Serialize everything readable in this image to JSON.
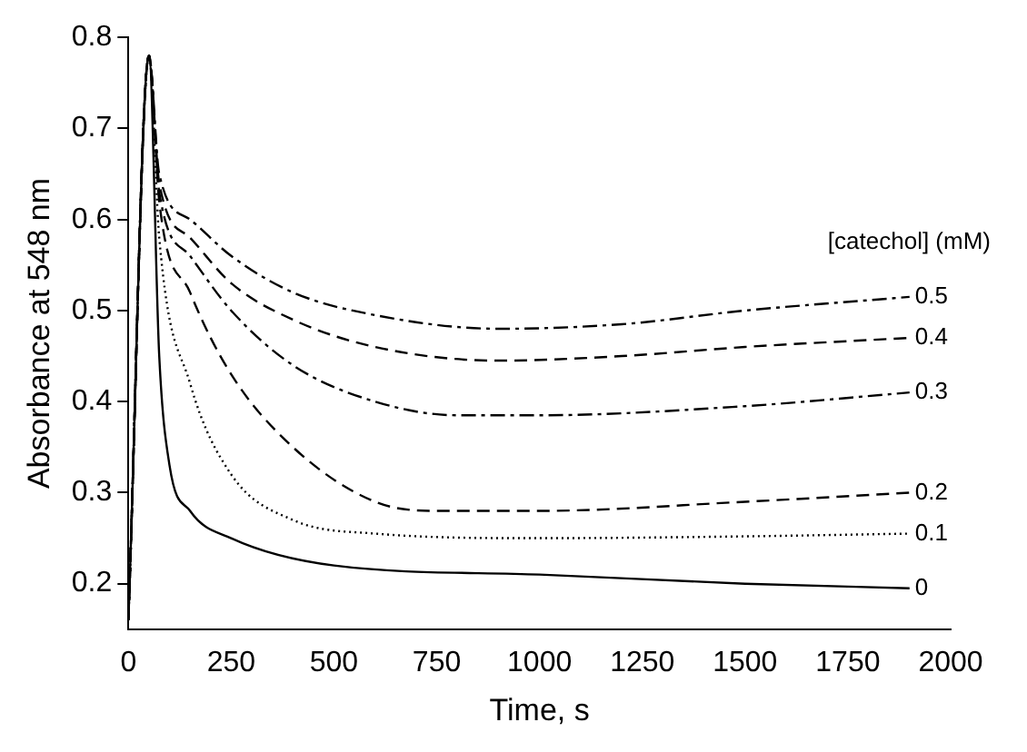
{
  "chart_data": {
    "type": "line",
    "xlabel": "Time, s",
    "ylabel": "Absorbance at 548 nm",
    "legend_title": "[catechol] (mM)",
    "xlim": [
      0,
      2000
    ],
    "ylim": [
      0.15,
      0.8
    ],
    "xticks": [
      0,
      250,
      500,
      750,
      1000,
      1250,
      1500,
      1750,
      2000
    ],
    "yticks": [
      0.2,
      0.3,
      0.4,
      0.5,
      0.6,
      0.7,
      0.8
    ],
    "grid": false,
    "legend": false,
    "marker": "none",
    "series": [
      {
        "name": "0.5",
        "color": "#000000",
        "line_style": "dashed",
        "x": [
          0,
          50,
          75,
          150,
          250,
          400,
          600,
          900,
          1200,
          1500,
          1900
        ],
        "values": [
          0.16,
          0.78,
          0.65,
          0.6,
          0.56,
          0.52,
          0.495,
          0.48,
          0.485,
          0.5,
          0.515
        ]
      },
      {
        "name": "0.4",
        "color": "#000000",
        "line_style": "dashed",
        "x": [
          0,
          50,
          75,
          150,
          250,
          400,
          600,
          900,
          1200,
          1500,
          1900
        ],
        "values": [
          0.16,
          0.78,
          0.64,
          0.58,
          0.53,
          0.49,
          0.46,
          0.445,
          0.45,
          0.46,
          0.47
        ]
      },
      {
        "name": "0.3",
        "color": "#000000",
        "line_style": "dashed",
        "x": [
          0,
          50,
          75,
          150,
          250,
          400,
          600,
          800,
          1000,
          1500,
          1900
        ],
        "values": [
          0.16,
          0.78,
          0.63,
          0.56,
          0.5,
          0.44,
          0.4,
          0.385,
          0.385,
          0.395,
          0.41
        ]
      },
      {
        "name": "0.2",
        "color": "#000000",
        "line_style": "dashed",
        "x": [
          0,
          50,
          75,
          150,
          250,
          400,
          600,
          750,
          1000,
          1500,
          1900
        ],
        "values": [
          0.16,
          0.78,
          0.62,
          0.52,
          0.43,
          0.35,
          0.29,
          0.28,
          0.28,
          0.29,
          0.3
        ]
      },
      {
        "name": "0.1",
        "color": "#000000",
        "line_style": "dotted",
        "x": [
          0,
          50,
          75,
          150,
          250,
          400,
          600,
          1000,
          1500,
          1900
        ],
        "values": [
          0.16,
          0.78,
          0.58,
          0.42,
          0.32,
          0.27,
          0.255,
          0.25,
          0.252,
          0.255
        ]
      },
      {
        "name": "0",
        "color": "#000000",
        "line_style": "solid",
        "x": [
          0,
          50,
          75,
          100,
          150,
          250,
          500,
          1000,
          1500,
          1900
        ],
        "values": [
          0.16,
          0.78,
          0.45,
          0.33,
          0.28,
          0.25,
          0.22,
          0.21,
          0.2,
          0.195
        ]
      }
    ]
  }
}
